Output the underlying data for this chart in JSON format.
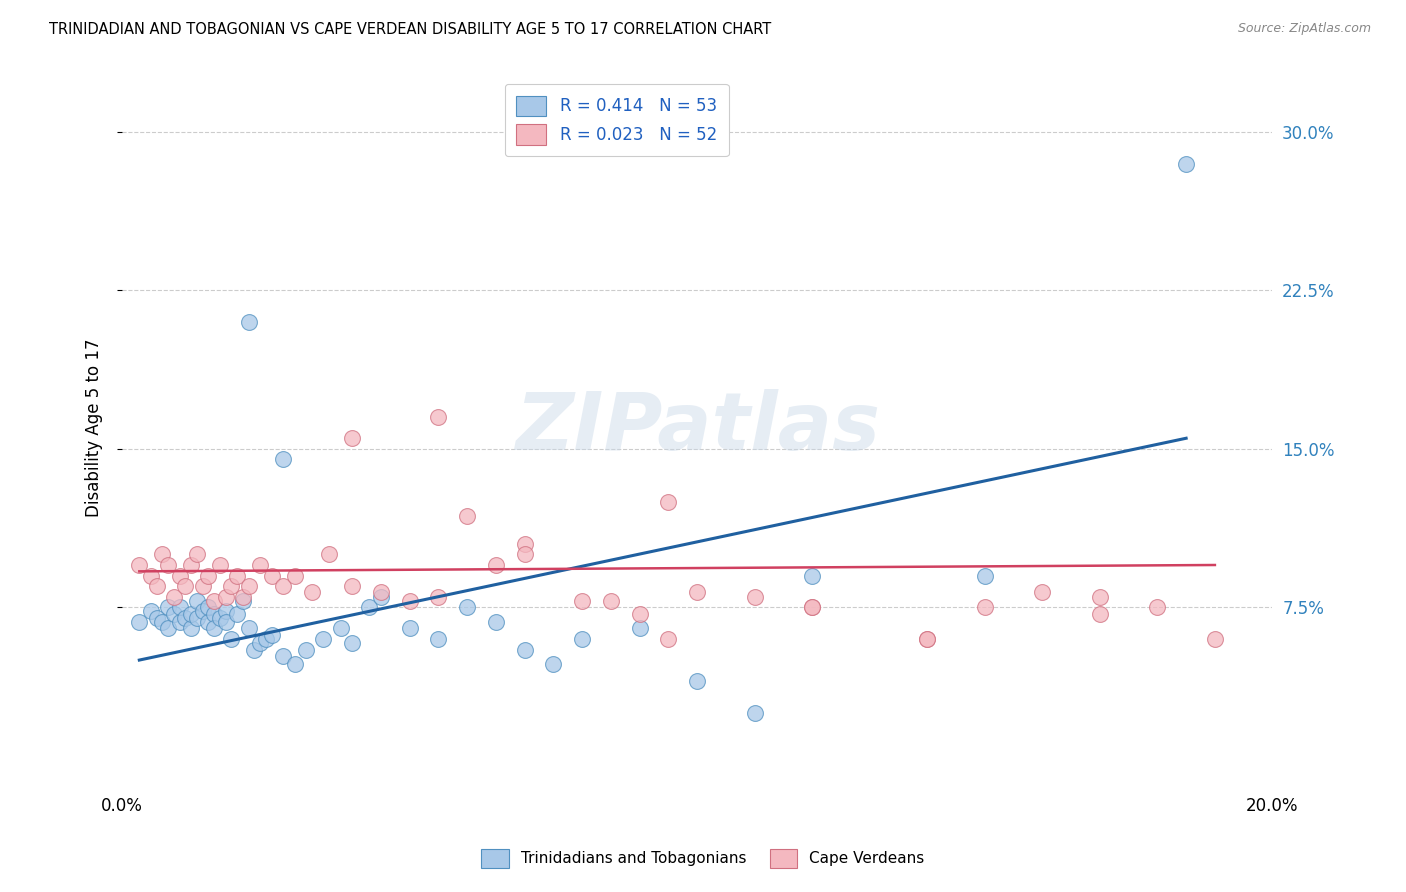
{
  "title": "TRINIDADIAN AND TOBAGONIAN VS CAPE VERDEAN DISABILITY AGE 5 TO 17 CORRELATION CHART",
  "source": "Source: ZipAtlas.com",
  "ylabel": "Disability Age 5 to 17",
  "xlim": [
    0.0,
    0.2
  ],
  "ylim": [
    -0.01,
    0.33
  ],
  "yticks": [
    0.075,
    0.15,
    0.225,
    0.3
  ],
  "ytick_labels": [
    "7.5%",
    "15.0%",
    "22.5%",
    "30.0%"
  ],
  "xticks": [
    0.0,
    0.05,
    0.1,
    0.15,
    0.2
  ],
  "xtick_labels": [
    "0.0%",
    "",
    "",
    "",
    "20.0%"
  ],
  "blue_color": "#a8c8e8",
  "pink_color": "#f4b8c0",
  "blue_edge_color": "#5090c0",
  "pink_edge_color": "#d07080",
  "blue_line_color": "#2060a0",
  "pink_line_color": "#d04060",
  "watermark": "ZIPatlas",
  "blue_scatter_x": [
    0.003,
    0.005,
    0.006,
    0.007,
    0.008,
    0.008,
    0.009,
    0.01,
    0.01,
    0.011,
    0.012,
    0.012,
    0.013,
    0.013,
    0.014,
    0.015,
    0.015,
    0.016,
    0.016,
    0.017,
    0.018,
    0.018,
    0.019,
    0.02,
    0.021,
    0.022,
    0.023,
    0.024,
    0.025,
    0.026,
    0.028,
    0.03,
    0.032,
    0.035,
    0.038,
    0.04,
    0.043,
    0.045,
    0.05,
    0.055,
    0.06,
    0.065,
    0.07,
    0.075,
    0.08,
    0.09,
    0.1,
    0.11,
    0.12,
    0.15,
    0.022,
    0.028,
    0.185
  ],
  "blue_scatter_y": [
    0.068,
    0.073,
    0.07,
    0.068,
    0.065,
    0.075,
    0.072,
    0.068,
    0.075,
    0.07,
    0.065,
    0.072,
    0.078,
    0.07,
    0.073,
    0.068,
    0.075,
    0.072,
    0.065,
    0.07,
    0.073,
    0.068,
    0.06,
    0.072,
    0.078,
    0.065,
    0.055,
    0.058,
    0.06,
    0.062,
    0.052,
    0.048,
    0.055,
    0.06,
    0.065,
    0.058,
    0.075,
    0.08,
    0.065,
    0.06,
    0.075,
    0.068,
    0.055,
    0.048,
    0.06,
    0.065,
    0.04,
    0.025,
    0.09,
    0.09,
    0.21,
    0.145,
    0.285
  ],
  "pink_scatter_x": [
    0.003,
    0.005,
    0.006,
    0.007,
    0.008,
    0.009,
    0.01,
    0.011,
    0.012,
    0.013,
    0.014,
    0.015,
    0.016,
    0.017,
    0.018,
    0.019,
    0.02,
    0.021,
    0.022,
    0.024,
    0.026,
    0.028,
    0.03,
    0.033,
    0.036,
    0.04,
    0.045,
    0.05,
    0.055,
    0.06,
    0.065,
    0.07,
    0.08,
    0.09,
    0.095,
    0.1,
    0.11,
    0.12,
    0.14,
    0.15,
    0.16,
    0.17,
    0.18,
    0.19,
    0.04,
    0.055,
    0.07,
    0.085,
    0.095,
    0.12,
    0.14,
    0.17
  ],
  "pink_scatter_y": [
    0.095,
    0.09,
    0.085,
    0.1,
    0.095,
    0.08,
    0.09,
    0.085,
    0.095,
    0.1,
    0.085,
    0.09,
    0.078,
    0.095,
    0.08,
    0.085,
    0.09,
    0.08,
    0.085,
    0.095,
    0.09,
    0.085,
    0.09,
    0.082,
    0.1,
    0.085,
    0.082,
    0.078,
    0.08,
    0.118,
    0.095,
    0.105,
    0.078,
    0.072,
    0.06,
    0.082,
    0.08,
    0.075,
    0.06,
    0.075,
    0.082,
    0.08,
    0.075,
    0.06,
    0.155,
    0.165,
    0.1,
    0.078,
    0.125,
    0.075,
    0.06,
    0.072
  ],
  "blue_line_x": [
    0.003,
    0.185
  ],
  "blue_line_y": [
    0.05,
    0.155
  ],
  "pink_line_x": [
    0.003,
    0.19
  ],
  "pink_line_y": [
    0.092,
    0.095
  ]
}
